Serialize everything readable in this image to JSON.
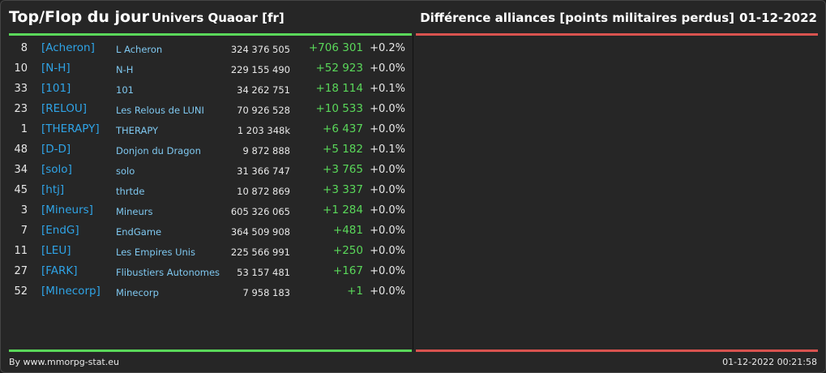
{
  "header": {
    "title": "Top/Flop du jour",
    "universe": "Univers Quaoar [fr]",
    "right_title": "Différence alliances [points militaires perdus]",
    "date": "01-12-2022"
  },
  "colors": {
    "gain_line": "#5ad85a",
    "loss_line": "#d9534f",
    "tag": "#2fa4e7",
    "name": "#7fc8f0",
    "gain_text": "#5ad85a"
  },
  "top_rows": [
    {
      "rank": "8",
      "tag": "[Acheron]",
      "name": "L Acheron",
      "points": "324 376 505",
      "diff": "+706 301",
      "pct": "+0.2%"
    },
    {
      "rank": "10",
      "tag": "[N-H]",
      "name": "N-H",
      "points": "229 155 490",
      "diff": "+52 923",
      "pct": "+0.0%"
    },
    {
      "rank": "33",
      "tag": "[101]",
      "name": "101",
      "points": "34 262 751",
      "diff": "+18 114",
      "pct": "+0.1%"
    },
    {
      "rank": "23",
      "tag": "[RELOU]",
      "name": "Les Relous de LUNI",
      "points": "70 926 528",
      "diff": "+10 533",
      "pct": "+0.0%"
    },
    {
      "rank": "1",
      "tag": "[THERAPY]",
      "name": "THERAPY",
      "points": "1 203 348k",
      "diff": "+6 437",
      "pct": "+0.0%"
    },
    {
      "rank": "48",
      "tag": "[D-D]",
      "name": "Donjon du Dragon",
      "points": "9 872 888",
      "diff": "+5 182",
      "pct": "+0.1%"
    },
    {
      "rank": "34",
      "tag": "[solo]",
      "name": "solo",
      "points": "31 366 747",
      "diff": "+3 765",
      "pct": "+0.0%"
    },
    {
      "rank": "45",
      "tag": "[htj]",
      "name": "thrtde",
      "points": "10 872 869",
      "diff": "+3 337",
      "pct": "+0.0%"
    },
    {
      "rank": "3",
      "tag": "[Mineurs]",
      "name": "Mineurs",
      "points": "605 326 065",
      "diff": "+1 284",
      "pct": "+0.0%"
    },
    {
      "rank": "7",
      "tag": "[EndG]",
      "name": "EndGame",
      "points": "364 509 908",
      "diff": "+481",
      "pct": "+0.0%"
    },
    {
      "rank": "11",
      "tag": "[LEU]",
      "name": "Les Empires Unis",
      "points": "225 566 991",
      "diff": "+250",
      "pct": "+0.0%"
    },
    {
      "rank": "27",
      "tag": "[FARK]",
      "name": "Flibustiers Autonomes",
      "points": "53 157 481",
      "diff": "+167",
      "pct": "+0.0%"
    },
    {
      "rank": "52",
      "tag": "[MInecorp]",
      "name": "Minecorp",
      "points": "7 958 183",
      "diff": "+1",
      "pct": "+0.0%"
    }
  ],
  "footer": {
    "source": "By www.mmorpg-stat.eu",
    "timestamp": "01-12-2022 00:21:58"
  }
}
